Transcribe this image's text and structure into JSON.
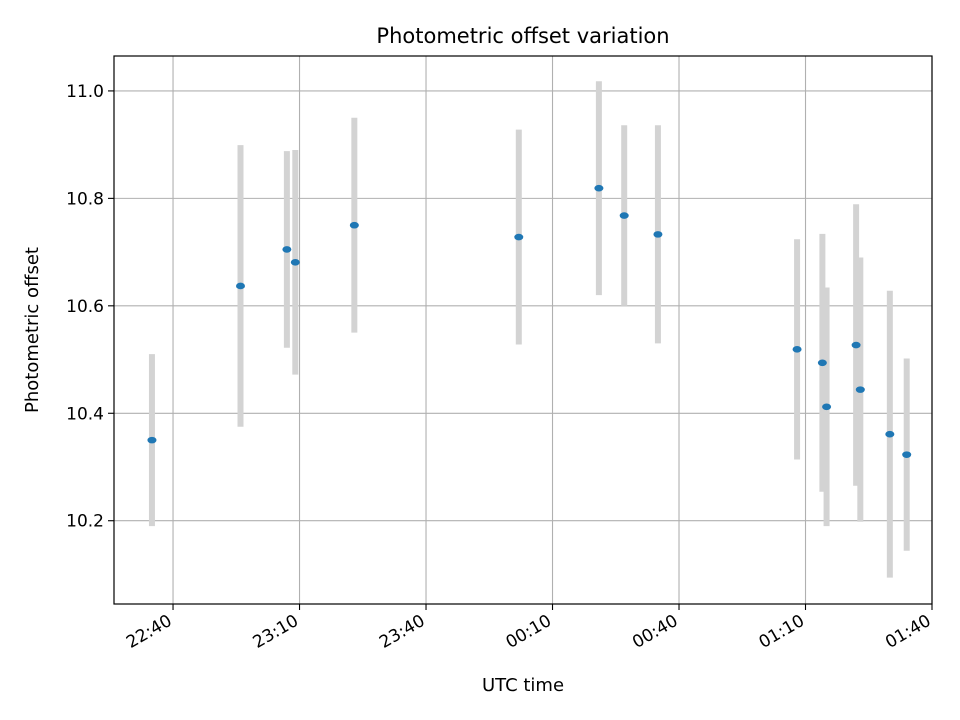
{
  "chart_data": {
    "type": "scatter",
    "title": "Photometric offset variation",
    "xlabel": "UTC time",
    "ylabel": "Photometric offset",
    "x_ticks": [
      "22:40",
      "23:10",
      "23:40",
      "00:10",
      "00:40",
      "01:10",
      "01:40"
    ],
    "y_ticks": [
      "10.2",
      "10.4",
      "10.6",
      "10.8",
      "11.0"
    ],
    "ylim": [
      10.045,
      11.065
    ],
    "xlim": [
      "22:26",
      "01:40"
    ],
    "grid": true,
    "series": [
      {
        "points": [
          {
            "x": "22:35",
            "y": 10.35,
            "err": 0.16
          },
          {
            "x": "22:56",
            "y": 10.637,
            "err": 0.262
          },
          {
            "x": "23:07",
            "y": 10.705,
            "err": 0.183
          },
          {
            "x": "23:09",
            "y": 10.681,
            "err": 0.209
          },
          {
            "x": "23:23",
            "y": 10.75,
            "err": 0.2
          },
          {
            "x": "00:02",
            "y": 10.728,
            "err": 0.2
          },
          {
            "x": "00:21",
            "y": 10.819,
            "err": 0.199
          },
          {
            "x": "00:27",
            "y": 10.768,
            "err": 0.168
          },
          {
            "x": "00:35",
            "y": 10.733,
            "err": 0.203
          },
          {
            "x": "01:08",
            "y": 10.519,
            "err": 0.205
          },
          {
            "x": "01:14",
            "y": 10.494,
            "err": 0.24
          },
          {
            "x": "01:15",
            "y": 10.412,
            "err": 0.222
          },
          {
            "x": "01:22",
            "y": 10.527,
            "err": 0.262
          },
          {
            "x": "01:23",
            "y": 10.444,
            "err": 0.246
          },
          {
            "x": "01:30",
            "y": 10.361,
            "err": 0.267
          },
          {
            "x": "01:34",
            "y": 10.323,
            "err": 0.179
          }
        ]
      }
    ]
  },
  "colors": {
    "point": "#1f77b4",
    "errorbar": "#d3d3d3",
    "grid": "#b0b0b0",
    "axis": "#000000"
  }
}
